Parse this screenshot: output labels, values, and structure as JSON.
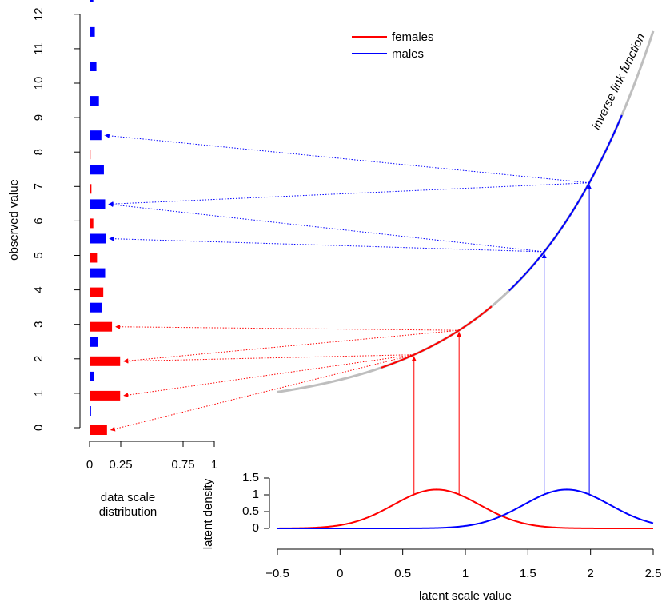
{
  "colors": {
    "females": "#ff0000",
    "males": "#0000ff",
    "link": "#bebebe",
    "axis": "#000000"
  },
  "chart_data": [
    {
      "type": "bar",
      "orientation": "horizontal",
      "title": "",
      "xlabel": "data scale distribution",
      "xlabel_lines": [
        "data scale",
        "distribution"
      ],
      "ylabel": "observed value",
      "x_ticks": [
        "0",
        "0.25",
        "0.75",
        "1"
      ],
      "x_tick_values": [
        0,
        0.25,
        0.75,
        1
      ],
      "xlim": [
        0,
        1
      ],
      "categories": [
        "0",
        "1",
        "2",
        "3",
        "4",
        "5",
        "6",
        "7",
        "8",
        "9",
        "10",
        "11",
        "12"
      ],
      "series": [
        {
          "name": "females",
          "values": [
            0.14,
            0.245,
            0.245,
            0.18,
            0.11,
            0.06,
            0.03,
            0.015,
            0.008,
            0.005,
            0.003,
            0.002,
            0.001
          ]
        },
        {
          "name": "males",
          "values": [
            0.012,
            0.035,
            0.065,
            0.1,
            0.125,
            0.13,
            0.125,
            0.115,
            0.095,
            0.075,
            0.055,
            0.042,
            0.03
          ]
        }
      ]
    },
    {
      "type": "line",
      "title": "",
      "xlabel": "latent scale value",
      "ylabel": "latent density",
      "x_ticks": [
        "−0.5",
        "0",
        "0.5",
        "1",
        "1.5",
        "2",
        "2.5"
      ],
      "x_tick_values": [
        -0.5,
        0,
        0.5,
        1,
        1.5,
        2,
        2.5
      ],
      "y_ticks": [
        "0",
        "0.5",
        "1",
        "1.5"
      ],
      "y_tick_values": [
        0,
        0.5,
        1,
        1.5
      ],
      "xlim": [
        -0.5,
        2.5
      ],
      "ylim": [
        0,
        1.5
      ],
      "series": [
        {
          "name": "females",
          "distribution": "normal",
          "mean": 0.77,
          "sd": 0.345,
          "marked_x": [
            0.59,
            0.95
          ]
        },
        {
          "name": "males",
          "distribution": "normal",
          "mean": 1.81,
          "sd": 0.345,
          "marked_x": [
            1.63,
            1.99
          ]
        }
      ],
      "inverse_link": {
        "function": "exp",
        "x_range": [
          -0.5,
          2.5
        ],
        "females_range": [
          0.33,
          1.21
        ],
        "males_range": [
          1.35,
          2.25
        ]
      },
      "arrow_targets": {
        "females": [
          [
            0,
            1,
            2
          ],
          [
            2,
            3
          ]
        ],
        "males": [
          [
            5,
            6
          ],
          [
            6,
            8
          ]
        ]
      },
      "annotations": [
        "inverse link function"
      ],
      "legend": {
        "position": "top-center",
        "entries": [
          "females",
          "males"
        ]
      }
    }
  ]
}
